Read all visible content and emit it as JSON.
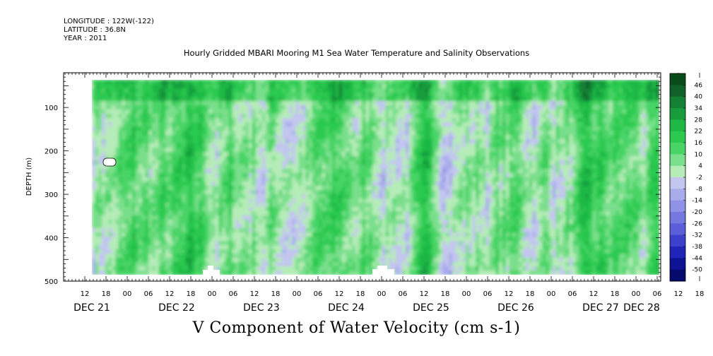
{
  "header": {
    "longitude": "LONGITUDE : 122W(-122)",
    "latitude": "LATITUDE : 36.8N",
    "year": "YEAR : 2011"
  },
  "chart_data": {
    "type": "heatmap",
    "title": "Hourly Gridded MBARI Mooring M1 Sea Water Temperature and Salinity Observations",
    "variable_label": "V Component of Water Velocity (cm s-1)",
    "ylabel": "DEPTH (m)",
    "x_hour_ticks": [
      "12",
      "18",
      "00",
      "06",
      "12",
      "18",
      "00",
      "06",
      "12",
      "18",
      "00",
      "06",
      "12",
      "18",
      "00",
      "06",
      "12",
      "18",
      "00",
      "06",
      "12",
      "18",
      "00",
      "06",
      "12",
      "18",
      "00",
      "06",
      "12",
      "18",
      "00",
      "06"
    ],
    "x_day_labels": [
      "DEC 21",
      "DEC 22",
      "DEC 23",
      "DEC 24",
      "DEC 25",
      "DEC 26",
      "DEC 27",
      "DEC 28"
    ],
    "y_ticks": [
      100,
      200,
      300,
      400,
      500
    ],
    "ylim": [
      500,
      20
    ],
    "colorbar": {
      "levels": [
        46,
        40,
        34,
        28,
        22,
        16,
        10,
        4,
        -2,
        -8,
        -14,
        -20,
        -26,
        -32,
        -38,
        -44,
        -50
      ],
      "label_levels": [
        "46",
        "40",
        "34",
        "28",
        "22",
        "16",
        "10",
        "4",
        "-2",
        "-8",
        "-14",
        "-20",
        "-26",
        "-32",
        "-38",
        "-44",
        "-50"
      ],
      "colors": [
        "#0b4a1a",
        "#10602a",
        "#148034",
        "#189c3c",
        "#1fb845",
        "#2cc94f",
        "#49d466",
        "#7adf8c",
        "#b5ecb8",
        "#c3c6ef",
        "#a9aceb",
        "#8f92e6",
        "#7478df",
        "#5a5ed8",
        "#3c40cb",
        "#2125b7",
        "#0e1394",
        "#060a6a"
      ]
    },
    "time_range_days": [
      0,
      7.4
    ],
    "notes_blank_cells": "white gaps near 210 m on DEC 21 and near 470-500 m around 00 DEC 23 and 00 DEC 25"
  }
}
